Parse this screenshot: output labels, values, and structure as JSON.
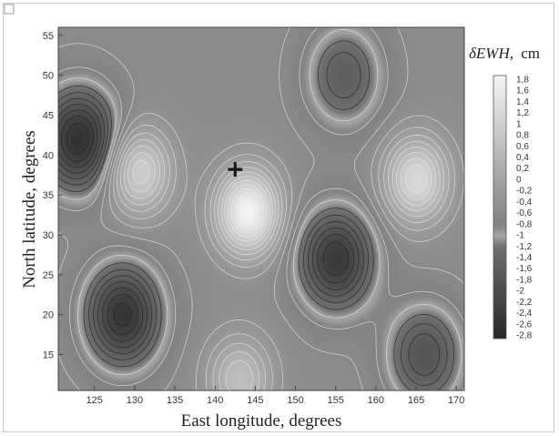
{
  "chart_data": {
    "type": "heatmap",
    "title": "",
    "xlabel": "East longitude, degrees",
    "ylabel": "North latitude, degrees",
    "xlim": [
      120.5,
      171
    ],
    "ylim": [
      10.5,
      56
    ],
    "x_ticks": [
      125,
      130,
      135,
      140,
      145,
      150,
      155,
      160,
      165,
      170
    ],
    "y_ticks": [
      15,
      20,
      25,
      30,
      35,
      40,
      45,
      50,
      55
    ],
    "colorbar": {
      "label_symbol": "δEWH,",
      "label_unit": "cm",
      "ticks": [
        1.8,
        1.6,
        1.4,
        1.2,
        1,
        0.8,
        0.6,
        0.4,
        0.2,
        0,
        -0.2,
        -0.4,
        -0.6,
        -0.8,
        -1,
        -1.2,
        -1.4,
        -1.6,
        -1.8,
        -2,
        -2.2,
        -2.4,
        -2.6,
        -2.8
      ],
      "range": [
        -2.8,
        1.8
      ]
    },
    "marker": {
      "symbol": "+",
      "lon": 142.5,
      "lat": 38.2
    },
    "features": [
      {
        "name": "high",
        "lon": 144,
        "lat": 33,
        "value": 1.8
      },
      {
        "name": "high",
        "lon": 130.5,
        "lat": 38,
        "value": 1.0
      },
      {
        "name": "high",
        "lon": 165,
        "lat": 37,
        "value": 1.2
      },
      {
        "name": "high",
        "lon": 143,
        "lat": 12,
        "value": 0.6
      },
      {
        "name": "low",
        "lon": 123,
        "lat": 42,
        "value": -2.6
      },
      {
        "name": "low",
        "lon": 128.5,
        "lat": 20,
        "value": -2.5
      },
      {
        "name": "low",
        "lon": 155,
        "lat": 27,
        "value": -2.4
      },
      {
        "name": "low",
        "lon": 156,
        "lat": 50,
        "value": -1.6
      },
      {
        "name": "low",
        "lon": 166,
        "lat": 15,
        "value": -1.8
      }
    ]
  }
}
